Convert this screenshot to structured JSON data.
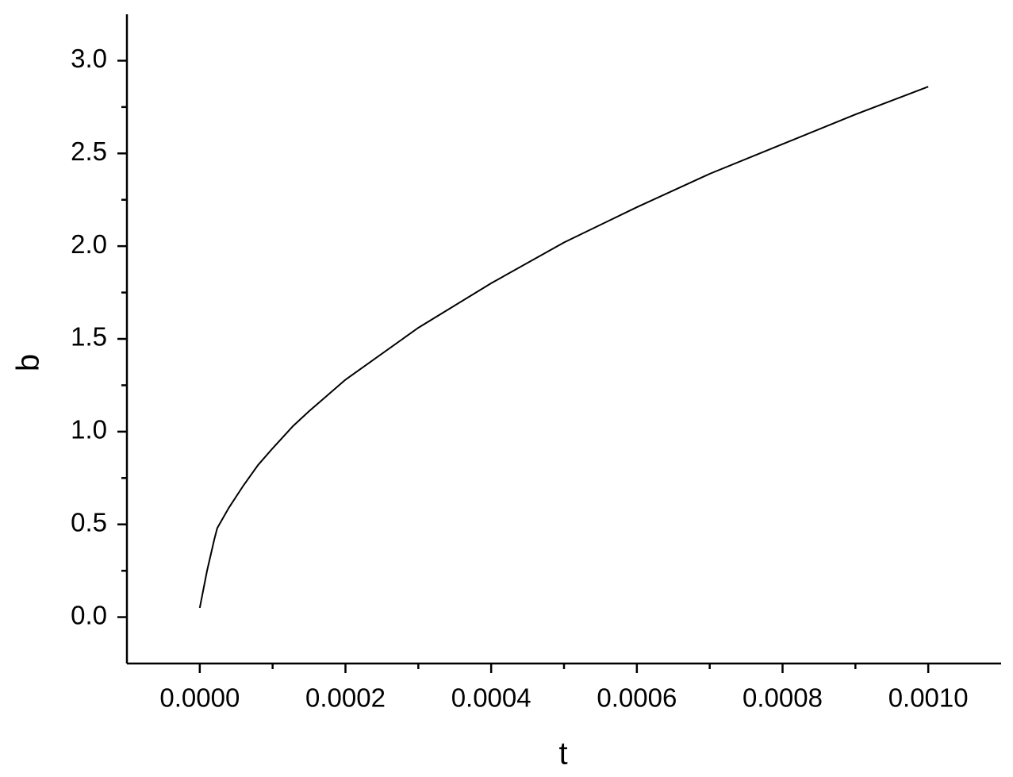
{
  "chart_data": {
    "type": "line",
    "x_label": "t",
    "y_label": "b",
    "x": [
      0,
      1e-05,
      2e-05,
      2.4e-05,
      4e-05,
      6e-05,
      8e-05,
      0.0001,
      0.000128,
      0.00015,
      0.0002,
      0.0003,
      0.0004,
      0.0005,
      0.0006,
      0.0007,
      0.0008,
      0.0009,
      0.001
    ],
    "series": [
      {
        "color": "#000000",
        "values": [
          0.05,
          0.25,
          0.42,
          0.48,
          0.59,
          0.71,
          0.82,
          0.91,
          1.03,
          1.11,
          1.28,
          1.56,
          1.8,
          2.02,
          2.21,
          2.39,
          2.55,
          2.71,
          2.86
        ]
      }
    ],
    "xlim": [
      -0.0001,
      0.0011
    ],
    "ylim": [
      -0.25,
      3.25
    ],
    "xticks": [
      {
        "value": 0,
        "label": "0.0000"
      },
      0.0002,
      0.0004,
      0.0006,
      0.0008,
      {
        "value": 0.001,
        "label": "0.0010"
      }
    ],
    "yticks": [
      {
        "value": 0,
        "label": "0.0"
      },
      0.5,
      {
        "value": 1,
        "label": "1.0"
      },
      1.5,
      {
        "value": 2,
        "label": "2.0"
      },
      2.5,
      {
        "value": 3,
        "label": "3.0"
      }
    ],
    "grid": false
  }
}
